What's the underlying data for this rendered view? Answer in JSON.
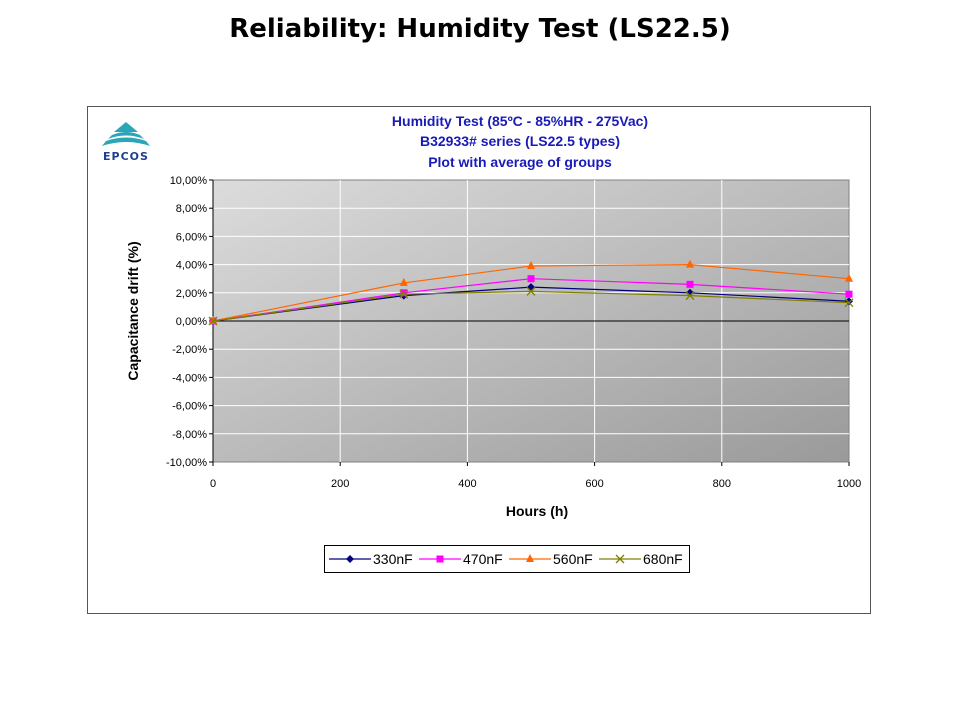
{
  "slide": {
    "title": "Reliability: Humidity Test (LS22.5)",
    "logo_text": "EPCOS"
  },
  "colors": {
    "title_text": "#1a1ab8",
    "logo": "#1f3f8f",
    "plot_background_light": "#dcdcdc",
    "plot_background_dark": "#9a9a9a",
    "gridline": "#ffffff"
  },
  "chart_data": {
    "type": "line",
    "title": "Humidity Test  (85ºC - 85%HR - 275Vac)",
    "subtitle_lines": [
      "B32933# series (LS22.5 types)",
      "Plot with average of groups"
    ],
    "xlabel": "Hours (h)",
    "ylabel": "Capacitance drift (%)",
    "xlim": [
      0,
      1000
    ],
    "ylim": [
      -10,
      10
    ],
    "x_ticks": [
      "0",
      "200",
      "400",
      "600",
      "800",
      "1000"
    ],
    "y_ticks": [
      "10,00%",
      "8,00%",
      "6,00%",
      "4,00%",
      "2,00%",
      "0,00%",
      "-2,00%",
      "-4,00%",
      "-6,00%",
      "-8,00%",
      "-10,00%"
    ],
    "grid": true,
    "legend_position": "bottom",
    "x": [
      0,
      300,
      500,
      750,
      1000
    ],
    "series": [
      {
        "name": "330nF",
        "values": [
          0.0,
          1.8,
          2.4,
          2.0,
          1.4
        ],
        "color": "#000080",
        "marker": "diamond"
      },
      {
        "name": "470nF",
        "values": [
          0.0,
          2.0,
          3.0,
          2.6,
          1.9
        ],
        "color": "#ff00ff",
        "marker": "square"
      },
      {
        "name": "560nF",
        "values": [
          0.0,
          2.7,
          3.9,
          4.0,
          3.0
        ],
        "color": "#ff6600",
        "marker": "triangle"
      },
      {
        "name": "680nF",
        "values": [
          0.0,
          1.9,
          2.1,
          1.8,
          1.3
        ],
        "color": "#808000",
        "marker": "x"
      }
    ]
  }
}
